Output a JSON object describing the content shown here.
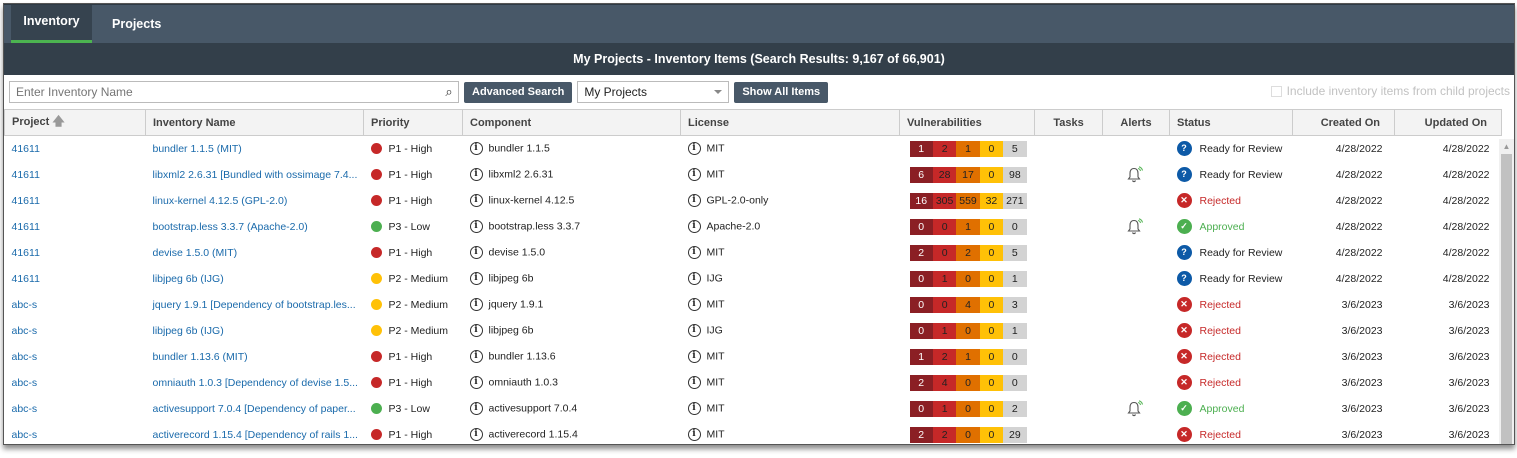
{
  "tabs": [
    {
      "label": "Inventory",
      "active": true
    },
    {
      "label": "Projects",
      "active": false
    }
  ],
  "title": "My Projects - Inventory Items (Search Results: 9,167 of 66,901)",
  "toolbar": {
    "search_placeholder": "Enter Inventory Name",
    "search_value": "",
    "advanced_search": "Advanced Search",
    "scope": "My Projects",
    "show_all": "Show All Items",
    "child_label": "Include inventory items from child projects",
    "child_checked": false
  },
  "columns": [
    "Project",
    "Inventory Name",
    "Priority",
    "Component",
    "License",
    "Vulnerabilities",
    "Tasks",
    "Alerts",
    "Status",
    "Created On",
    "Updated On"
  ],
  "sort": {
    "column": "Project",
    "direction": "ascending"
  },
  "colors": {
    "priority": {
      "P1 - High": "#c62828",
      "P2 - Medium": "#ffc107",
      "P3 - Low": "#4caf50"
    },
    "vuln": [
      "#8b1f24",
      "#c62828",
      "#e07000",
      "#ffc107",
      "#d3d3d3"
    ],
    "status": {
      "Ready for Review": "#0d5aa7",
      "Rejected": "#c62828",
      "Approved": "#4caf50"
    }
  },
  "rows": [
    {
      "project": "41611",
      "name": "bundler 1.1.5 (MIT)",
      "priority": "P1 - High",
      "component": "bundler 1.1.5",
      "license": "MIT",
      "vulns": [
        1,
        2,
        1,
        0,
        5
      ],
      "tasks": "",
      "alert": false,
      "status": "Ready for Review",
      "created": "4/28/2022",
      "updated": "4/28/2022"
    },
    {
      "project": "41611",
      "name": "libxml2 2.6.31  [Bundled with ossimage 7.4...",
      "priority": "P1 - High",
      "component": "libxml2 2.6.31",
      "license": "MIT",
      "vulns": [
        6,
        28,
        17,
        0,
        98
      ],
      "tasks": "",
      "alert": true,
      "status": "Ready for Review",
      "created": "4/28/2022",
      "updated": "4/28/2022"
    },
    {
      "project": "41611",
      "name": "linux-kernel 4.12.5 (GPL-2.0)",
      "priority": "P1 - High",
      "component": "linux-kernel 4.12.5",
      "license": "GPL-2.0-only",
      "vulns": [
        16,
        305,
        559,
        32,
        271
      ],
      "tasks": "",
      "alert": false,
      "status": "Rejected",
      "created": "4/28/2022",
      "updated": "4/28/2022"
    },
    {
      "project": "41611",
      "name": "bootstrap.less 3.3.7 (Apache-2.0)",
      "priority": "P3 - Low",
      "component": "bootstrap.less 3.3.7",
      "license": "Apache-2.0",
      "vulns": [
        0,
        0,
        1,
        0,
        0
      ],
      "tasks": "",
      "alert": true,
      "status": "Approved",
      "created": "4/28/2022",
      "updated": "4/28/2022"
    },
    {
      "project": "41611",
      "name": "devise 1.5.0 (MIT)",
      "priority": "P1 - High",
      "component": "devise 1.5.0",
      "license": "MIT",
      "vulns": [
        2,
        0,
        2,
        0,
        5
      ],
      "tasks": "",
      "alert": false,
      "status": "Ready for Review",
      "created": "4/28/2022",
      "updated": "4/28/2022"
    },
    {
      "project": "41611",
      "name": "libjpeg 6b (IJG)",
      "priority": "P2 - Medium",
      "component": "libjpeg 6b",
      "license": "IJG",
      "vulns": [
        0,
        1,
        0,
        0,
        1
      ],
      "tasks": "",
      "alert": false,
      "status": "Ready for Review",
      "created": "4/28/2022",
      "updated": "4/28/2022"
    },
    {
      "project": "abc-s",
      "name": "jquery 1.9.1  [Dependency of bootstrap.les...",
      "priority": "P2 - Medium",
      "component": "jquery 1.9.1",
      "license": "MIT",
      "vulns": [
        0,
        0,
        4,
        0,
        3
      ],
      "tasks": "",
      "alert": false,
      "status": "Rejected",
      "created": "3/6/2023",
      "updated": "3/6/2023"
    },
    {
      "project": "abc-s",
      "name": "libjpeg 6b (IJG)",
      "priority": "P2 - Medium",
      "component": "libjpeg 6b",
      "license": "IJG",
      "vulns": [
        0,
        1,
        0,
        0,
        1
      ],
      "tasks": "",
      "alert": false,
      "status": "Rejected",
      "created": "3/6/2023",
      "updated": "3/6/2023"
    },
    {
      "project": "abc-s",
      "name": "bundler 1.13.6 (MIT)",
      "priority": "P1 - High",
      "component": "bundler 1.13.6",
      "license": "MIT",
      "vulns": [
        1,
        2,
        1,
        0,
        0
      ],
      "tasks": "",
      "alert": false,
      "status": "Rejected",
      "created": "3/6/2023",
      "updated": "3/6/2023"
    },
    {
      "project": "abc-s",
      "name": "omniauth 1.0.3  [Dependency of devise 1.5...",
      "priority": "P1 - High",
      "component": "omniauth 1.0.3",
      "license": "MIT",
      "vulns": [
        2,
        4,
        0,
        0,
        0
      ],
      "tasks": "",
      "alert": false,
      "status": "Rejected",
      "created": "3/6/2023",
      "updated": "3/6/2023"
    },
    {
      "project": "abc-s",
      "name": "activesupport 7.0.4  [Dependency of paper...",
      "priority": "P3 - Low",
      "component": "activesupport 7.0.4",
      "license": "MIT",
      "vulns": [
        0,
        1,
        0,
        0,
        2
      ],
      "tasks": "",
      "alert": true,
      "status": "Approved",
      "created": "3/6/2023",
      "updated": "3/6/2023"
    },
    {
      "project": "abc-s",
      "name": "activerecord 1.15.4  [Dependency of rails 1...",
      "priority": "P1 - High",
      "component": "activerecord 1.15.4",
      "license": "MIT",
      "vulns": [
        2,
        2,
        0,
        0,
        29
      ],
      "tasks": "",
      "alert": false,
      "status": "Rejected",
      "created": "3/6/2023",
      "updated": "3/6/2023"
    }
  ]
}
